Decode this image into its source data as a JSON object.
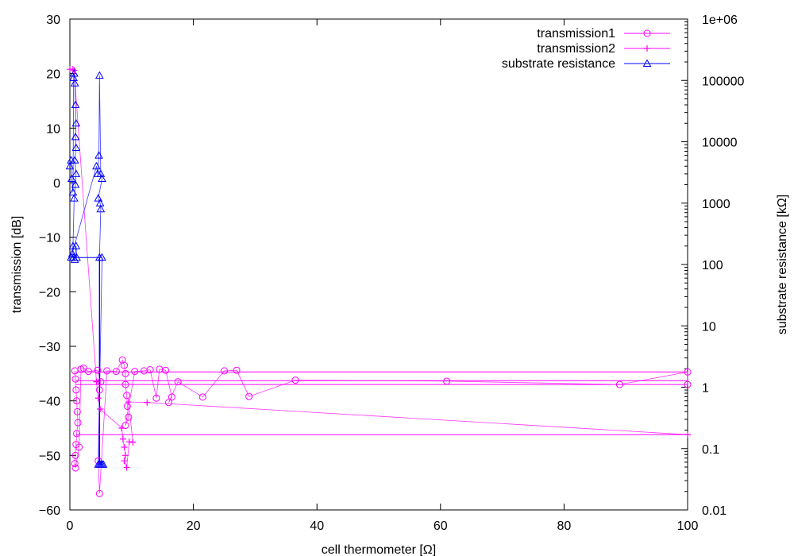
{
  "chart_data": {
    "type": "scatter",
    "xlabel": "cell thermometer [Ω]",
    "ylabel": "transmission [dB]",
    "y2label": "substrate resistance [kΩ]",
    "xlim": [
      0,
      100
    ],
    "ylim": [
      -60,
      30
    ],
    "y2lim": [
      0.01,
      1000000
    ],
    "y2scale": "log",
    "x_ticks": [
      0,
      20,
      40,
      60,
      80,
      100
    ],
    "y_ticks": [
      -60,
      -50,
      -40,
      -30,
      -20,
      -10,
      0,
      10,
      20,
      30
    ],
    "y2_ticks": [
      0.01,
      0.1,
      1,
      10,
      100,
      1000,
      10000,
      100000,
      1000000
    ],
    "y2_tick_labels": [
      "0.01",
      "0.1",
      "1",
      "10",
      "100",
      "1000",
      "10000",
      "100000",
      "1e+06"
    ],
    "grid": false,
    "legend_position": "top-right",
    "series": [
      {
        "name": "transmission1",
        "axis": "left",
        "color": "#ff00ff",
        "marker": "circle",
        "points": [
          [
            0.8,
            -34.5
          ],
          [
            0.9,
            -36.0
          ],
          [
            1.0,
            -38.0
          ],
          [
            1.1,
            -40.0
          ],
          [
            1.2,
            -42.0
          ],
          [
            1.3,
            -44.0
          ],
          [
            1.1,
            -46.0
          ],
          [
            1.0,
            -48.0
          ],
          [
            0.9,
            -50.0
          ],
          [
            0.8,
            -51.5
          ],
          [
            0.9,
            -52.3
          ],
          [
            1.5,
            -48.5
          ],
          [
            1.8,
            -34.2
          ],
          [
            2.2,
            -34.0
          ],
          [
            3.0,
            -34.6
          ],
          [
            4.5,
            -34.4
          ],
          [
            5.0,
            -36.5
          ],
          [
            4.8,
            -38.0
          ],
          [
            4.6,
            -51.0
          ],
          [
            4.8,
            -57.0
          ],
          [
            6.0,
            -34.5
          ],
          [
            7.5,
            -34.6
          ],
          [
            8.5,
            -32.5
          ],
          [
            8.8,
            -33.5
          ],
          [
            9.0,
            -35.0
          ],
          [
            9.0,
            -37.0
          ],
          [
            9.2,
            -39.0
          ],
          [
            9.3,
            -41.0
          ],
          [
            9.5,
            -43.0
          ],
          [
            9.0,
            -44.5
          ],
          [
            10.5,
            -34.6
          ],
          [
            12.0,
            -34.5
          ],
          [
            13.0,
            -34.3
          ],
          [
            14.0,
            -39.5
          ],
          [
            14.5,
            -34.2
          ],
          [
            15.5,
            -34.4
          ],
          [
            16.5,
            -39.3
          ],
          [
            16.0,
            -40.3
          ],
          [
            17.5,
            -36.5
          ],
          [
            21.5,
            -39.3
          ],
          [
            25.0,
            -34.5
          ],
          [
            27.0,
            -34.4
          ],
          [
            29.0,
            -39.2
          ],
          [
            36.5,
            -36.2
          ],
          [
            61.0,
            -36.4
          ],
          [
            89.0,
            -37.0
          ],
          [
            100.0,
            -34.7
          ],
          [
            100.0,
            -37.0
          ]
        ]
      },
      {
        "name": "transmission2",
        "axis": "left",
        "color": "#ff00ff",
        "marker": "plus",
        "points": [
          [
            0.0,
            20.8
          ],
          [
            0.5,
            20.8
          ],
          [
            0.7,
            20.6
          ],
          [
            4.3,
            -36.5
          ],
          [
            4.6,
            -39.5
          ],
          [
            4.9,
            -41.5
          ],
          [
            8.4,
            -45.0
          ],
          [
            8.6,
            -47.0
          ],
          [
            8.8,
            -48.5
          ],
          [
            9.0,
            -50.0
          ],
          [
            8.8,
            -51.0
          ],
          [
            9.2,
            -52.2
          ],
          [
            9.6,
            -47.5
          ],
          [
            10.2,
            -47.6
          ],
          [
            9.5,
            -40.2
          ],
          [
            12.5,
            -40.3
          ],
          [
            100.0,
            -46.2
          ]
        ]
      },
      {
        "name": "substrate resistance",
        "axis": "right",
        "color": "#0000ff",
        "marker": "triangle",
        "points": [
          [
            0.0,
            4000
          ],
          [
            0.2,
            5000
          ],
          [
            0.3,
            2500
          ],
          [
            0.5,
            1500
          ],
          [
            0.6,
            110000
          ],
          [
            0.7,
            130000
          ],
          [
            0.8,
            90000
          ],
          [
            0.9,
            40000
          ],
          [
            1.0,
            20000
          ],
          [
            0.9,
            12000
          ],
          [
            1.0,
            8000
          ],
          [
            0.8,
            5000
          ],
          [
            1.0,
            3000
          ],
          [
            0.9,
            2000
          ],
          [
            0.7,
            1200
          ],
          [
            0.5,
            200
          ],
          [
            0.4,
            150
          ],
          [
            0.8,
            120
          ],
          [
            1.0,
            200
          ],
          [
            1.1,
            130
          ],
          [
            0.6,
            130
          ],
          [
            0.2,
            130
          ],
          [
            4.3,
            4000
          ],
          [
            4.5,
            3000
          ],
          [
            4.7,
            6000
          ],
          [
            4.8,
            120000
          ],
          [
            5.0,
            3000
          ],
          [
            5.2,
            2500
          ],
          [
            4.6,
            1200
          ],
          [
            4.9,
            1000
          ],
          [
            5.0,
            800
          ],
          [
            4.8,
            130
          ],
          [
            5.2,
            130
          ],
          [
            4.6,
            0.055
          ],
          [
            4.8,
            0.055
          ],
          [
            5.0,
            0.055
          ],
          [
            5.2,
            0.055
          ],
          [
            5.4,
            0.055
          ]
        ]
      }
    ]
  }
}
